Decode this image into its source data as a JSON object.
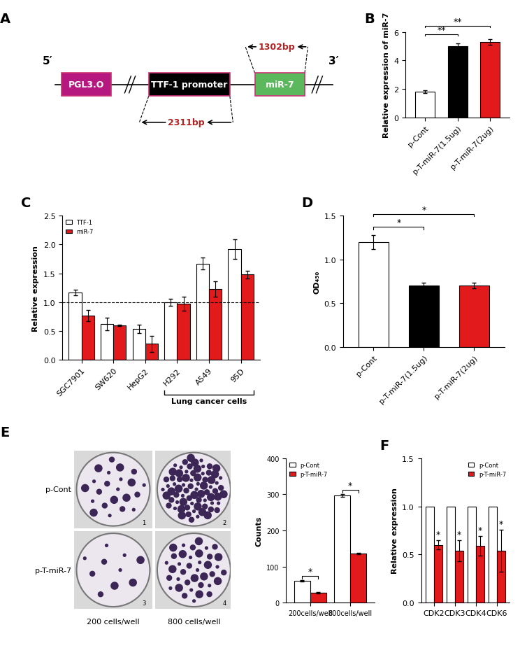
{
  "diagram": {
    "panel": "A",
    "ends": [
      "5′",
      "3′"
    ],
    "boxes": [
      {
        "label": "PGL3.O",
        "color": "#b5197f"
      },
      {
        "label": "TTF-1 promoter",
        "color": "#000000"
      },
      {
        "label": "miR-7",
        "color": "#5cb85c"
      }
    ],
    "amplicons": [
      {
        "label": "1302bp",
        "over": "miR-7"
      },
      {
        "label": "2311bp",
        "over": "TTF-1 promoter"
      }
    ]
  },
  "plates": {
    "panel": "E",
    "rows": [
      "p-Cont",
      "p-T-miR-7"
    ],
    "columns": [
      "200 cells/well",
      "800 cells/well"
    ],
    "numbers": [
      [
        1,
        2
      ],
      [
        3,
        4
      ]
    ]
  },
  "chart_data": [
    {
      "panel": "B",
      "type": "bar",
      "categories": [
        "p-Cont",
        "p-T-miR-7(1.5ug)",
        "p-T-miR-7(2ug)"
      ],
      "values": [
        1.8,
        5.0,
        5.3
      ],
      "errors": [
        0.08,
        0.18,
        0.2
      ],
      "colors": [
        "#ffffff",
        "#000000",
        "#e31a1c"
      ],
      "y_label": "Relative expression of miR-7",
      "ylim": [
        0,
        6
      ],
      "yticks": [
        0,
        2,
        4,
        6
      ],
      "annotations": [
        {
          "text": "**",
          "from": "p-Cont",
          "to": "p-T-miR-7(1.5ug)"
        },
        {
          "text": "**",
          "from": "p-Cont",
          "to": "p-T-miR-7(2ug)"
        }
      ]
    },
    {
      "panel": "C",
      "type": "bar",
      "categories": [
        "SGC7901",
        "SW620",
        "HepG2",
        "H292",
        "A549",
        "95D"
      ],
      "series": [
        {
          "name": "TTF-1",
          "color": "#ffffff",
          "values": [
            1.17,
            0.62,
            0.54,
            1.0,
            1.67,
            1.92
          ],
          "errors": [
            0.05,
            0.11,
            0.07,
            0.06,
            0.1,
            0.17
          ]
        },
        {
          "name": "miR-7",
          "color": "#e31a1c",
          "values": [
            0.77,
            0.6,
            0.28,
            0.97,
            1.23,
            1.48
          ],
          "errors": [
            0.1,
            0.01,
            0.14,
            0.12,
            0.13,
            0.07
          ]
        }
      ],
      "y_label": "Relative expression",
      "ylim": [
        0,
        2.5
      ],
      "yticks": [
        {
          "value": 0,
          "label": "0.0"
        },
        {
          "value": 0.5,
          "label": "0.5"
        },
        {
          "value": 1.0,
          "label": "1.0"
        },
        {
          "value": 1.5,
          "label": "1.5"
        },
        {
          "value": 2.0,
          "label": "2.0"
        },
        {
          "value": 2.5,
          "label": "2.5"
        }
      ],
      "reference_line": 1.0,
      "group_label": {
        "text": "Lung cancer cells",
        "from": "H292",
        "to": "95D"
      },
      "legend": "upper left"
    },
    {
      "panel": "D",
      "type": "bar",
      "categories": [
        "p-Cont",
        "p-T-miR-7(1.5ug)",
        "p-T-miR-7(2ug)"
      ],
      "values": [
        1.2,
        0.7,
        0.7
      ],
      "errors": [
        0.08,
        0.03,
        0.03
      ],
      "colors": [
        "#ffffff",
        "#000000",
        "#e31a1c"
      ],
      "y_label": "OD₄₅₀",
      "ylim": [
        0,
        1.5
      ],
      "yticks": [
        {
          "value": 0,
          "label": "0.0"
        },
        {
          "value": 0.5,
          "label": "0.5"
        },
        {
          "value": 1.0,
          "label": "1.0"
        },
        {
          "value": 1.5,
          "label": "1.5"
        }
      ],
      "annotations": [
        {
          "text": "*",
          "from": "p-Cont",
          "to": "p-T-miR-7(1.5ug)"
        },
        {
          "text": "*",
          "from": "p-Cont",
          "to": "p-T-miR-7(2ug)"
        }
      ]
    },
    {
      "panel": null,
      "type": "bar",
      "categories": [
        "200cells/well",
        "800cells/well"
      ],
      "series": [
        {
          "name": "p-Cont",
          "color": "#ffffff",
          "values": [
            60,
            297
          ],
          "errors": [
            2,
            4
          ]
        },
        {
          "name": "p-T-miR-7",
          "color": "#e31a1c",
          "values": [
            27,
            135
          ],
          "errors": [
            2,
            2
          ]
        }
      ],
      "y_label": "Counts",
      "ylim": [
        0,
        400
      ],
      "yticks": [
        0,
        100,
        200,
        300,
        400
      ],
      "legend": "upper left",
      "annotations": [
        {
          "text": "*",
          "category": "200cells/well"
        },
        {
          "text": "*",
          "category": "800cells/well"
        }
      ]
    },
    {
      "panel": "F",
      "type": "bar",
      "categories": [
        "CDK2",
        "CDK3",
        "CDK4",
        "CDK6"
      ],
      "series": [
        {
          "name": "p-Cont",
          "color": "#ffffff",
          "values": [
            1,
            1,
            1,
            1
          ]
        },
        {
          "name": "p-T-miR-7",
          "color": "#e31a1c",
          "values": [
            0.6,
            0.54,
            0.59,
            0.54
          ],
          "errors": [
            0.05,
            0.11,
            0.1,
            0.22
          ]
        }
      ],
      "y_label": "Relative expression",
      "ylim": [
        0,
        1.5
      ],
      "yticks": [
        {
          "value": 0,
          "label": "0.0"
        },
        {
          "value": 0.5,
          "label": "0.5"
        },
        {
          "value": 1.0,
          "label": "1.0"
        },
        {
          "value": 1.5,
          "label": "1.5"
        }
      ],
      "legend": "upper right",
      "annotations": [
        {
          "text": "*",
          "category": "CDK2",
          "series": "p-T-miR-7"
        },
        {
          "text": "*",
          "category": "CDK3",
          "series": "p-T-miR-7"
        },
        {
          "text": "*",
          "category": "CDK4",
          "series": "p-T-miR-7"
        },
        {
          "text": "*",
          "category": "CDK6",
          "series": "p-T-miR-7"
        }
      ]
    }
  ]
}
